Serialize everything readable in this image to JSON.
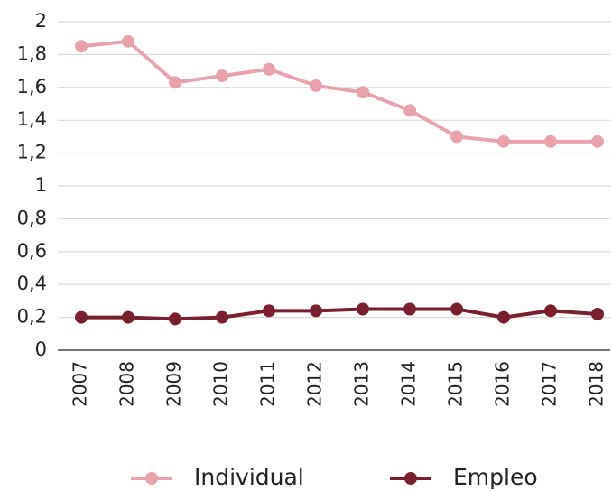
{
  "chart_data": {
    "type": "line",
    "categories": [
      "2007",
      "2008",
      "2009",
      "2010",
      "2011",
      "2012",
      "2013",
      "2014",
      "2015",
      "2016",
      "2017",
      "2018"
    ],
    "series": [
      {
        "name": "Individual",
        "color": "#e8a2ab",
        "values": [
          1.85,
          1.88,
          1.63,
          1.67,
          1.71,
          1.61,
          1.57,
          1.46,
          1.3,
          1.27,
          1.27,
          1.27
        ]
      },
      {
        "name": "Empleo",
        "color": "#7a1f2e",
        "values": [
          0.2,
          0.2,
          0.19,
          0.2,
          0.24,
          0.24,
          0.25,
          0.25,
          0.25,
          0.2,
          0.24,
          0.22
        ]
      }
    ],
    "ylim": [
      0,
      2
    ],
    "yticks": [
      0,
      {
        "value": 0.2,
        "label": "0,2"
      },
      {
        "value": 0.4,
        "label": "0,4"
      },
      {
        "value": 0.6,
        "label": "0,6"
      },
      {
        "value": 0.8,
        "label": "0,8"
      },
      1,
      {
        "value": 1.2,
        "label": "1,2"
      },
      {
        "value": 1.4,
        "label": "1,4"
      },
      {
        "value": 1.6,
        "label": "1,6"
      },
      {
        "value": 1.8,
        "label": "1,8"
      },
      2
    ],
    "grid": true,
    "legend": "bottom"
  }
}
